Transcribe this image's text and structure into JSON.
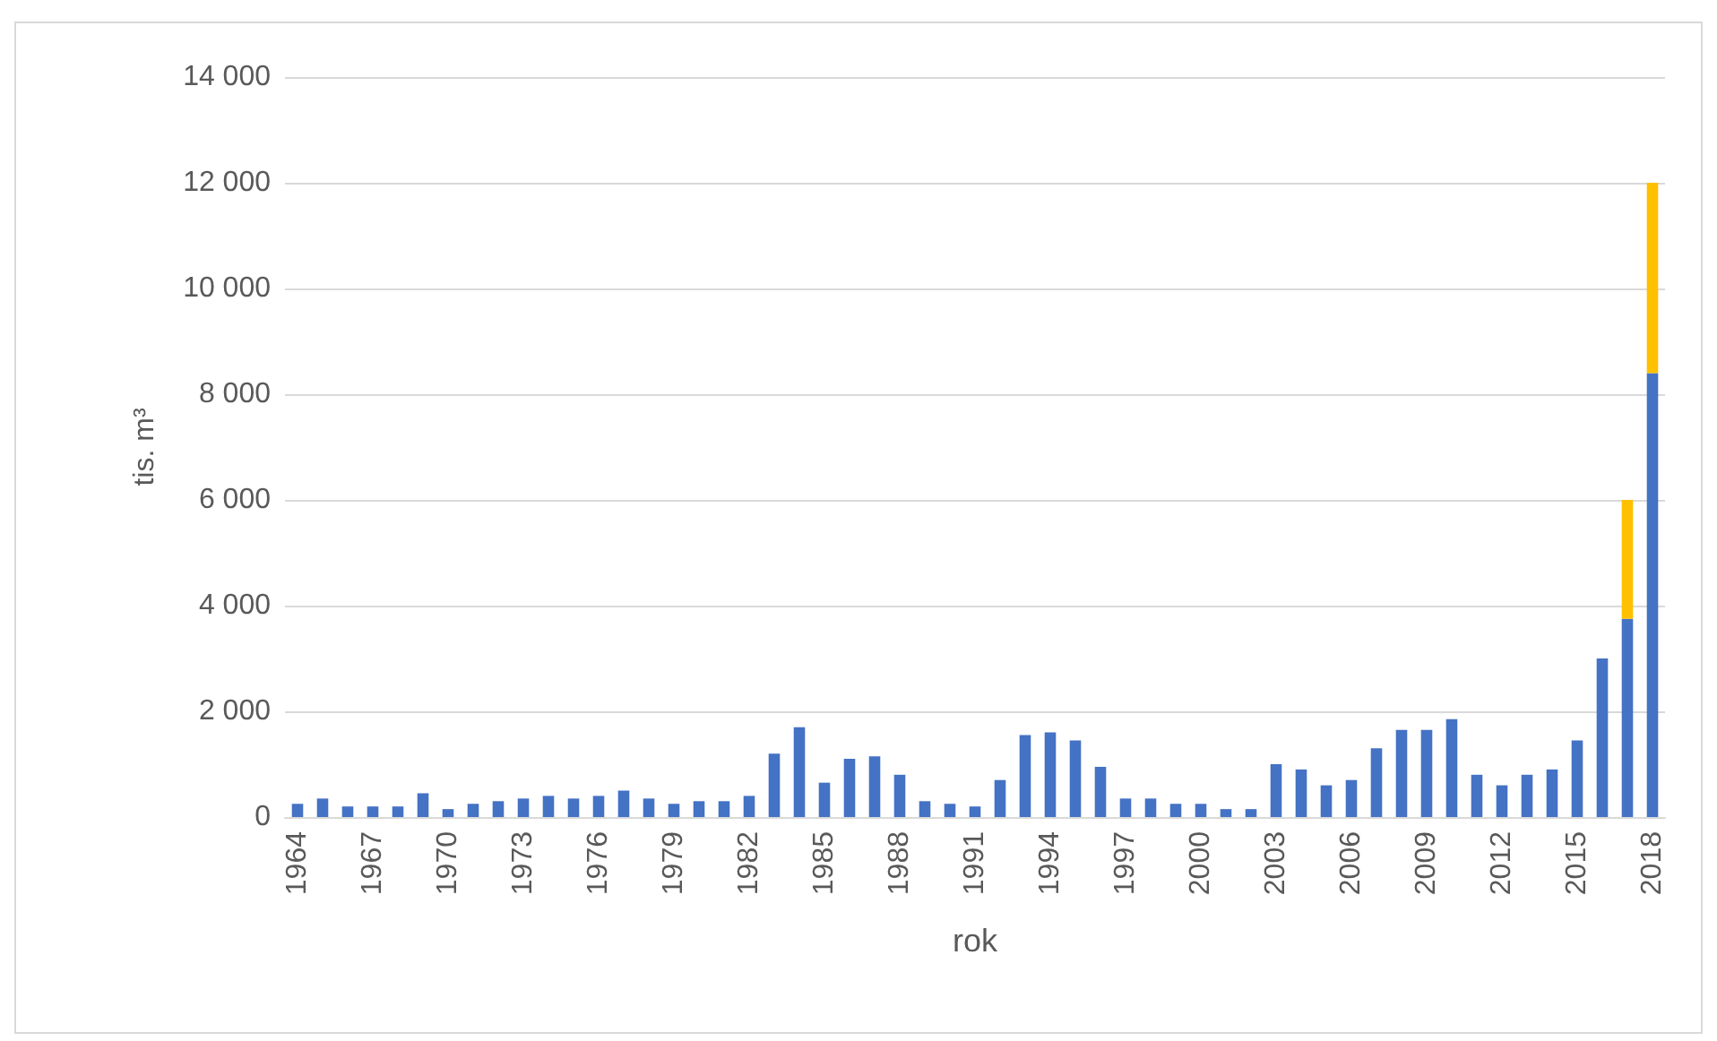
{
  "chart_data": {
    "type": "bar",
    "stacked": true,
    "xlabel": "rok",
    "ylabel": "tis. m³",
    "categories": [
      "1964",
      null,
      null,
      "1967",
      null,
      null,
      "1970",
      null,
      null,
      "1973",
      null,
      null,
      "1976",
      null,
      null,
      "1979",
      null,
      null,
      "1982",
      null,
      null,
      "1985",
      null,
      null,
      "1988",
      null,
      null,
      "1991",
      null,
      null,
      "1994",
      null,
      null,
      "1997",
      null,
      null,
      "2000",
      null,
      null,
      "2003",
      null,
      null,
      "2006",
      null,
      null,
      "2009",
      null,
      null,
      "2012",
      null,
      null,
      "2015",
      null,
      null,
      "2018"
    ],
    "series": [
      {
        "color": "#4472c4",
        "values": [
          250,
          350,
          200,
          200,
          200,
          450,
          150,
          250,
          300,
          350,
          400,
          350,
          400,
          500,
          350,
          250,
          300,
          300,
          400,
          1200,
          1700,
          650,
          1100,
          1150,
          800,
          300,
          250,
          200,
          700,
          1550,
          1600,
          1450,
          950,
          350,
          350,
          250,
          250,
          150,
          150,
          1000,
          900,
          600,
          700,
          1300,
          1650,
          1650,
          1850,
          800,
          600,
          800,
          900,
          1450,
          3000,
          3750,
          8400
        ]
      },
      {
        "color": "#ffc000",
        "values": [
          0,
          0,
          0,
          0,
          0,
          0,
          0,
          0,
          0,
          0,
          0,
          0,
          0,
          0,
          0,
          0,
          0,
          0,
          0,
          0,
          0,
          0,
          0,
          0,
          0,
          0,
          0,
          0,
          0,
          0,
          0,
          0,
          0,
          0,
          0,
          0,
          0,
          0,
          0,
          0,
          0,
          0,
          0,
          0,
          0,
          0,
          0,
          0,
          0,
          0,
          0,
          0,
          0,
          2250,
          3600
        ]
      }
    ],
    "ylim": [
      0,
      14000
    ],
    "yticks": [
      0,
      {
        "value": 2000,
        "label": "2 000"
      },
      {
        "value": 4000,
        "label": "4 000"
      },
      {
        "value": 6000,
        "label": "6 000"
      },
      {
        "value": 8000,
        "label": "8 000"
      },
      {
        "value": 10000,
        "label": "10 000"
      },
      {
        "value": 12000,
        "label": "12 000"
      },
      {
        "value": 14000,
        "label": "14 000"
      }
    ],
    "grid": "y"
  }
}
